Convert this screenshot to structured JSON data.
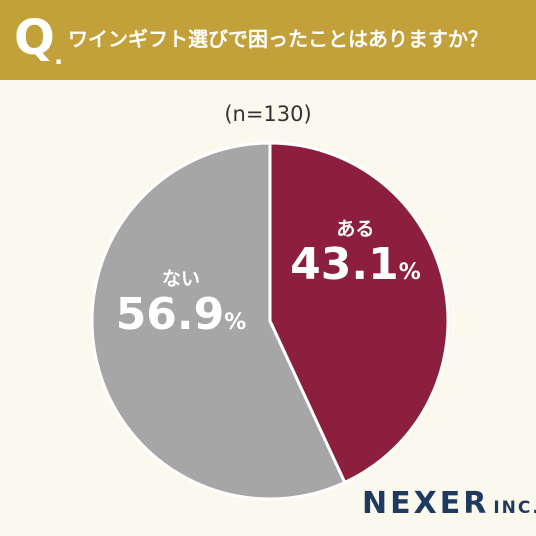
{
  "header": {
    "q_letter": "Q",
    "q_dot": ".",
    "question": "ワインギフト選びで困ったことはありますか？"
  },
  "sample_size": "(n=130)",
  "logo": {
    "brand": "NEXER",
    "suffix": "INC."
  },
  "colors": {
    "header": "#c2a13b",
    "aru": "#8b1f3d",
    "nai": "#a6a6a6",
    "background": "#fbf8ee",
    "logo": "#1e3a5f"
  },
  "chart_data": {
    "type": "pie",
    "title": "ワインギフト選びで困ったことはありますか？",
    "categories": [
      "ある",
      "ない"
    ],
    "values": [
      43.1,
      56.9
    ],
    "unit": "%",
    "slices": [
      {
        "label": "ある",
        "value": 43.1,
        "value_text": "43.1",
        "unit": "%",
        "color": "#8b1f3d"
      },
      {
        "label": "ない",
        "value": 56.9,
        "value_text": "56.9",
        "unit": "%",
        "color": "#a6a6a6"
      }
    ],
    "start": "12 o'clock",
    "direction": "clockwise"
  }
}
